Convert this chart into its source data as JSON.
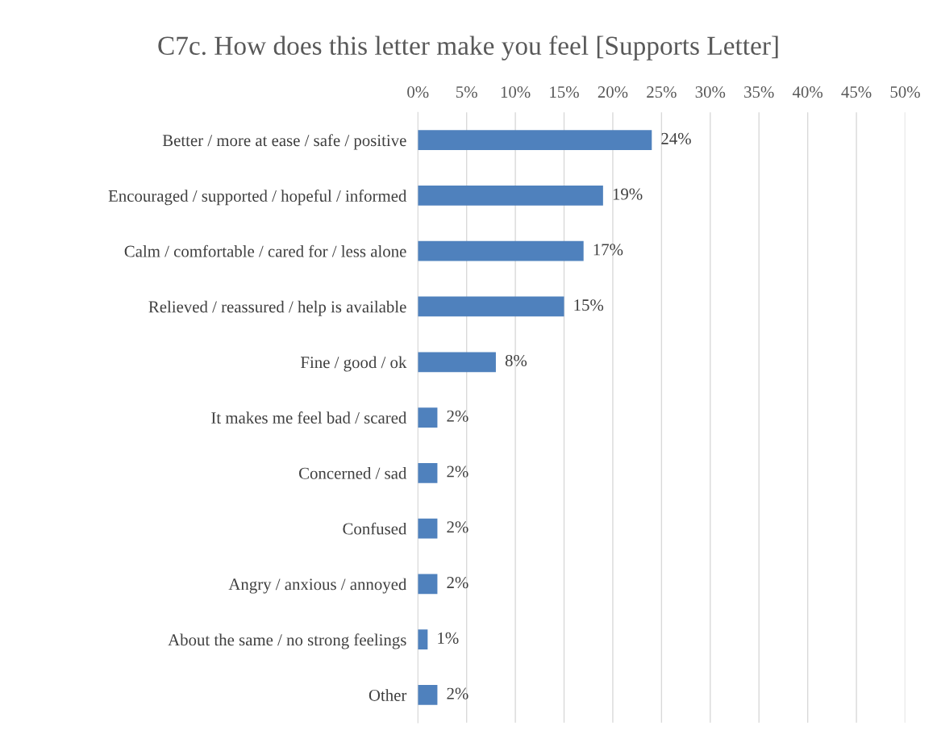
{
  "chart_data": {
    "type": "bar",
    "orientation": "horizontal",
    "title": "C7c. How does this letter make you feel [Supports Letter]",
    "categories": [
      "Better / more at ease / safe / positive",
      "Encouraged / supported / hopeful / informed",
      "Calm / comfortable / cared for / less alone",
      "Relieved / reassured / help is available",
      "Fine / good / ok",
      "It makes me feel bad / scared",
      "Concerned / sad",
      "Confused",
      "Angry / anxious / annoyed",
      "About the same / no strong feelings",
      "Other"
    ],
    "values": [
      24,
      19,
      17,
      15,
      8,
      2,
      2,
      2,
      2,
      1,
      2
    ],
    "value_labels": [
      "24%",
      "19%",
      "17%",
      "15%",
      "8%",
      "2%",
      "2%",
      "2%",
      "2%",
      "1%",
      "2%"
    ],
    "color": "#4f81bd",
    "xlim": [
      0,
      50
    ],
    "xticks": [
      {
        "value": 0,
        "label": "0%"
      },
      {
        "value": 5,
        "label": "5%"
      },
      {
        "value": 10,
        "label": "10%"
      },
      {
        "value": 15,
        "label": "15%"
      },
      {
        "value": 20,
        "label": "20%"
      },
      {
        "value": 25,
        "label": "25%"
      },
      {
        "value": 30,
        "label": "30%"
      },
      {
        "value": 35,
        "label": "35%"
      },
      {
        "value": 40,
        "label": "40%"
      },
      {
        "value": 45,
        "label": "45%"
      },
      {
        "value": 50,
        "label": "50%"
      }
    ],
    "grid": "x",
    "legend": false
  }
}
